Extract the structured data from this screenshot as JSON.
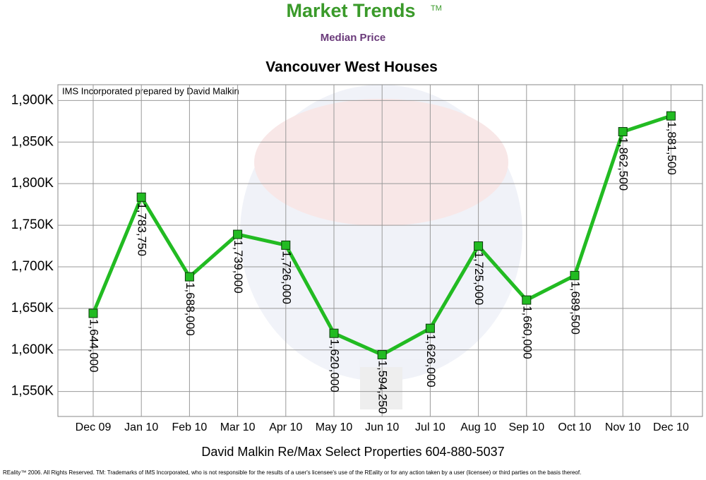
{
  "header": {
    "brand": "Market Trends",
    "trademark": "TM"
  },
  "chart_data": {
    "type": "line",
    "title": "Vancouver West Houses",
    "subtitle": "Median Price",
    "annotation": "IMS Incorporated prepared by David Malkin",
    "categories": [
      "Dec 09",
      "Jan 10",
      "Feb 10",
      "Mar 10",
      "Apr 10",
      "May 10",
      "Jun 10",
      "Jul 10",
      "Aug 10",
      "Sep 10",
      "Oct 10",
      "Nov 10",
      "Dec 10"
    ],
    "values": [
      1644000,
      1783750,
      1688000,
      1739000,
      1726000,
      1620000,
      1594250,
      1626000,
      1725000,
      1660000,
      1689500,
      1862500,
      1881500
    ],
    "value_labels": [
      "1,644,000",
      "1,783,750",
      "1,688,000",
      "1,739,000",
      "1,726,000",
      "1,620,000",
      "1,594,250",
      "1,626,000",
      "1,725,000",
      "1,660,000",
      "1,689,500",
      "1,862,500",
      "1,881,500"
    ],
    "color": "#22bb22",
    "ylim": [
      1520000,
      1919000
    ],
    "yticks": [
      {
        "value": 1550000,
        "label": "1,550K"
      },
      {
        "value": 1600000,
        "label": "1,600K"
      },
      {
        "value": 1650000,
        "label": "1,650K"
      },
      {
        "value": 1700000,
        "label": "1,700K"
      },
      {
        "value": 1750000,
        "label": "1,750K"
      },
      {
        "value": 1800000,
        "label": "1,800K"
      },
      {
        "value": 1850000,
        "label": "1,850K"
      },
      {
        "value": 1900000,
        "label": "1,900K"
      }
    ],
    "grid": true
  },
  "footer": {
    "contact": "David Malkin Re/Max Select Properties 604-880-5037",
    "legal": "REality™ 2006. All Rights Reserved. TM: Trademarks of IMS Incorporated, who is not responsible for the results of a user's licensee's use of the REality  or for any action taken by a user (licensee) or third parties on the basis thereof."
  }
}
